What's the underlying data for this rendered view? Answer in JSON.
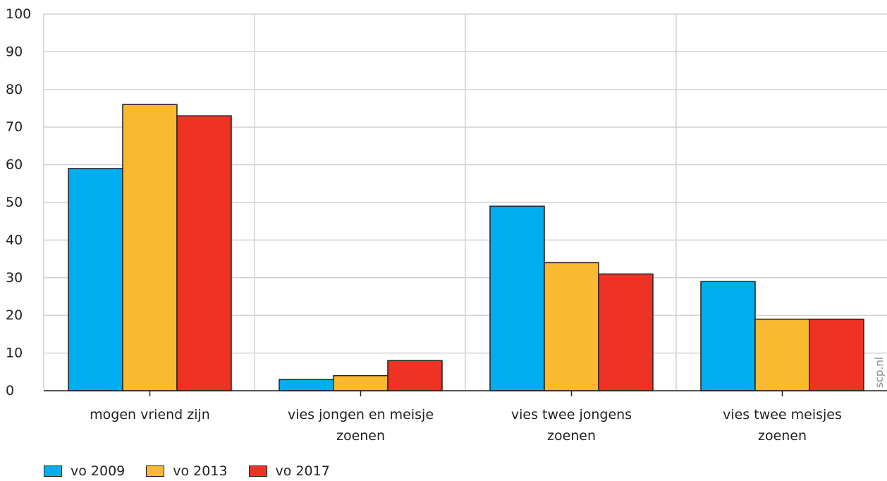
{
  "chart_data": {
    "type": "bar",
    "categories": [
      [
        "mogen vriend zijn"
      ],
      [
        "vies jongen en meisje",
        "zoenen"
      ],
      [
        "vies twee jongens",
        "zoenen"
      ],
      [
        "vies twee meisjes",
        "zoenen"
      ]
    ],
    "series": [
      {
        "name": "vo 2009",
        "color": "#00aeef",
        "values": [
          59,
          3,
          49,
          29
        ]
      },
      {
        "name": "vo 2013",
        "color": "#fbb931",
        "values": [
          76,
          4,
          34,
          19
        ]
      },
      {
        "name": "vo 2017",
        "color": "#ee3224",
        "values": [
          73,
          8,
          31,
          19
        ]
      }
    ],
    "ylim": [
      0,
      100
    ],
    "yticks": [
      "0",
      "10",
      "20",
      "30",
      "40",
      "50",
      "60",
      "70",
      "80",
      "90",
      "100"
    ],
    "grid": true,
    "legend_position": "bottom-left",
    "watermark": "scp.nl"
  }
}
